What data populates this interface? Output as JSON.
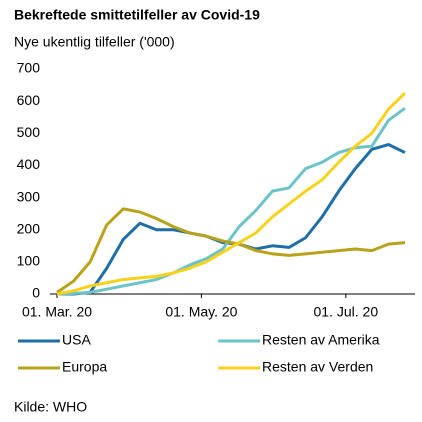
{
  "chart_data": {
    "type": "line",
    "title": "Bekreftede smittetilfeller av Covid-19",
    "subtitle": "Nye ukentlig tilfeller ('000)",
    "source": "Kilde: WHO",
    "x": [
      "2020-03-01",
      "2020-03-08",
      "2020-03-15",
      "2020-03-22",
      "2020-03-29",
      "2020-04-05",
      "2020-04-12",
      "2020-04-19",
      "2020-04-26",
      "2020-05-03",
      "2020-05-10",
      "2020-05-17",
      "2020-05-24",
      "2020-05-31",
      "2020-06-07",
      "2020-06-14",
      "2020-06-21",
      "2020-06-28",
      "2020-07-05",
      "2020-07-12",
      "2020-07-19",
      "2020-07-26"
    ],
    "xlim": [
      "2020-03-01",
      "2020-07-26"
    ],
    "xticks": [
      {
        "value": "2020-03-01",
        "label": "01. Mar. 20"
      },
      {
        "value": "2020-05-01",
        "label": "01. May. 20"
      },
      {
        "value": "2020-07-01",
        "label": "01. Jul. 20"
      }
    ],
    "ylim": [
      0,
      700
    ],
    "yticks": [
      0,
      100,
      200,
      300,
      400,
      500,
      600,
      700
    ],
    "grid": false,
    "series": [
      {
        "name": "USA",
        "color": "#1f6ea8",
        "values": [
          0,
          0,
          5,
          80,
          170,
          220,
          200,
          200,
          190,
          180,
          160,
          155,
          140,
          150,
          145,
          175,
          240,
          320,
          390,
          450,
          465,
          440
        ]
      },
      {
        "name": "Resten av Amerika",
        "color": "#6cc3c9",
        "values": [
          0,
          2,
          5,
          15,
          25,
          35,
          45,
          65,
          90,
          110,
          140,
          210,
          260,
          320,
          330,
          390,
          410,
          440,
          455,
          460,
          540,
          578
        ]
      },
      {
        "name": "Europa",
        "color": "#b8a31a",
        "values": [
          5,
          40,
          100,
          215,
          265,
          255,
          235,
          210,
          190,
          180,
          165,
          155,
          135,
          125,
          120,
          125,
          130,
          135,
          140,
          135,
          155,
          160
        ]
      },
      {
        "name": "Resten av Verden",
        "color": "#f7d21a",
        "values": [
          0,
          10,
          25,
          35,
          45,
          50,
          55,
          65,
          80,
          100,
          130,
          160,
          190,
          240,
          280,
          320,
          355,
          410,
          460,
          500,
          575,
          625
        ]
      }
    ]
  }
}
